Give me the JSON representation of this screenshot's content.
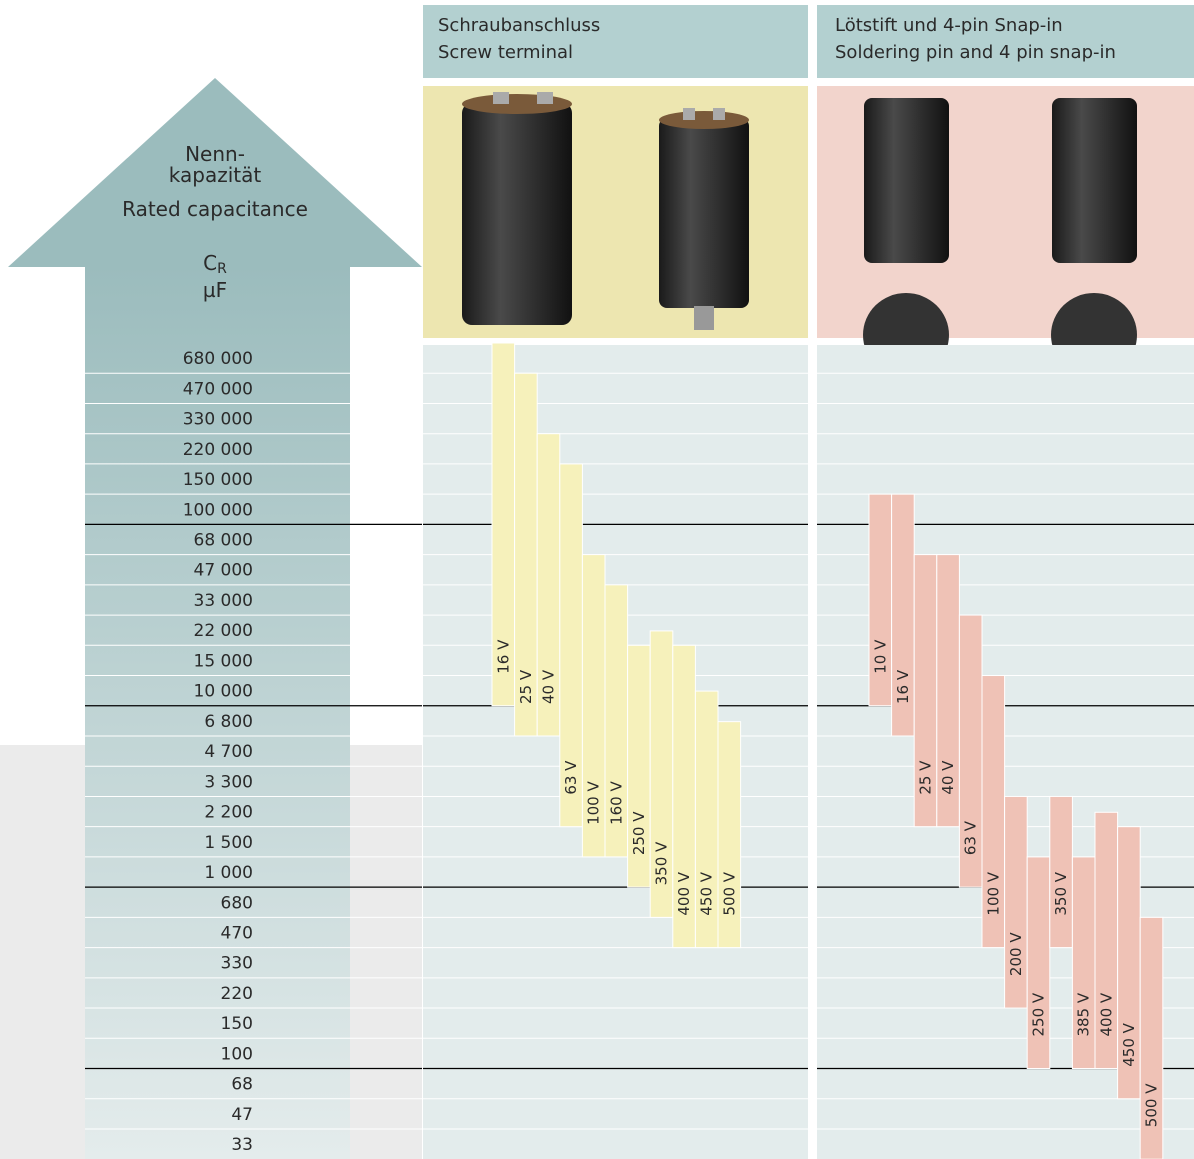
{
  "arrow": {
    "title_de_1": "Nenn-",
    "title_de_2": "kapazität",
    "title_en": "Rated capacitance",
    "symbol": "C",
    "symbol_sub": "R",
    "unit": "µF"
  },
  "rows": [
    {
      "value": 680000,
      "label": "680 000"
    },
    {
      "value": 470000,
      "label": "470 000"
    },
    {
      "value": 330000,
      "label": "330 000"
    },
    {
      "value": 220000,
      "label": "220 000"
    },
    {
      "value": 150000,
      "label": "150 000"
    },
    {
      "value": 100000,
      "label": "100 000"
    },
    {
      "value": 68000,
      "label": "68 000"
    },
    {
      "value": 47000,
      "label": "47 000"
    },
    {
      "value": 33000,
      "label": "33 000"
    },
    {
      "value": 22000,
      "label": "22 000"
    },
    {
      "value": 15000,
      "label": "15 000"
    },
    {
      "value": 10000,
      "label": "10 000"
    },
    {
      "value": 6800,
      "label": "6 800"
    },
    {
      "value": 4700,
      "label": "4 700"
    },
    {
      "value": 3300,
      "label": "3 300"
    },
    {
      "value": 2200,
      "label": "2 200"
    },
    {
      "value": 1500,
      "label": "1 500"
    },
    {
      "value": 1000,
      "label": "1 000"
    },
    680,
    470,
    330,
    220,
    150,
    100,
    68,
    47,
    33
  ],
  "panels": [
    {
      "title_de": "Schraubanschluss",
      "title_en": "Screw terminal",
      "color": "#f6f1bb",
      "bars": [
        {
          "label": "16 V",
          "max": 680000,
          "min": 10000
        },
        {
          "label": "25 V",
          "max": 470000,
          "min": 6800
        },
        {
          "label": "40 V",
          "max": 220000,
          "min": 6800
        },
        {
          "label": "63 V",
          "max": 150000,
          "min": 2200
        },
        {
          "label": "100 V",
          "max": 47000,
          "min": 1500
        },
        {
          "label": "160 V",
          "max": 33000,
          "min": 1500
        },
        {
          "label": "250 V",
          "max": 15000,
          "min": 1000
        },
        {
          "label": "350 V",
          "max": 18000,
          "min": 680
        },
        {
          "label": "400 V",
          "max": 15000,
          "min": 470
        },
        {
          "label": "450 V",
          "max": 8200,
          "min": 470
        },
        {
          "label": "500 V",
          "max": 5600,
          "min": 470
        }
      ]
    },
    {
      "title_de": "Lötstift und 4-pin Snap-in",
      "title_en": "Soldering pin and 4 pin snap-in",
      "color": "#efc2b6",
      "bars": [
        {
          "label": "10 V",
          "max": 100000,
          "min": 10000
        },
        {
          "label": "16 V",
          "max": 100000,
          "min": 6800
        },
        {
          "label": "25 V",
          "max": 47000,
          "min": 2200
        },
        {
          "label": "40 V",
          "max": 47000,
          "min": 2200
        },
        {
          "label": "63 V",
          "max": 22000,
          "min": 1000
        },
        {
          "label": "100 V",
          "max": 10000,
          "min": 470
        },
        {
          "label": "200 V",
          "max": 2200,
          "min": 220
        },
        {
          "label": "250 V",
          "max": 1000,
          "min": 100
        },
        {
          "label": "350 V",
          "max": 2200,
          "min": 470
        },
        {
          "label": "385 V",
          "max": 1000,
          "min": 100
        },
        {
          "label": "400 V",
          "max": 1800,
          "min": 100
        },
        {
          "label": "450 V",
          "max": 1500,
          "min": 68
        },
        {
          "label": "500 V",
          "max": 470,
          "min": 33
        }
      ]
    }
  ]
}
